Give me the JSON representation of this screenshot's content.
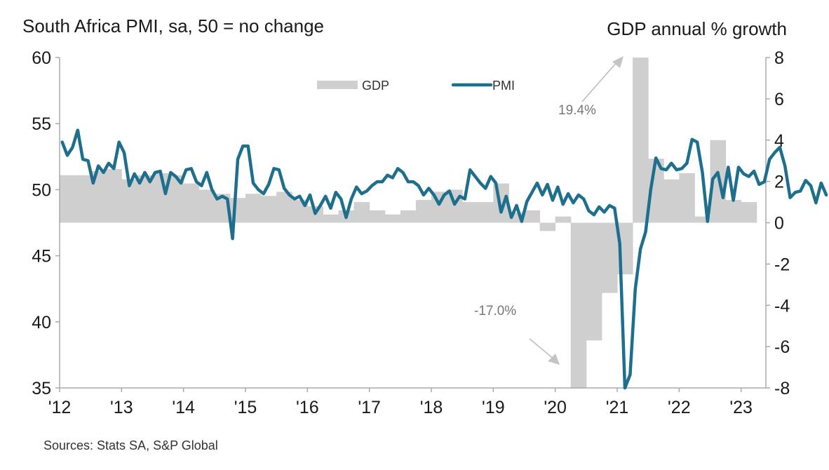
{
  "header": {
    "left_title": "South Africa PMI, sa, 50 = no change",
    "right_title": "GDP annual % growth"
  },
  "footer": {
    "source": "Sources: Stats SA, S&P Global"
  },
  "chart_data": {
    "type": "bar+line",
    "title_left": "South Africa PMI, sa, 50 = no change",
    "title_right": "GDP annual % growth",
    "colors": {
      "pmi": "#1e6f8e",
      "gdp": "#cfcfcf",
      "axis": "#aaaaaa",
      "annotation": "#999999"
    },
    "legend": {
      "position": "top-center",
      "entries": [
        "GDP",
        "PMI"
      ]
    },
    "left_axis": {
      "label": "PMI",
      "range": [
        35,
        60
      ],
      "ticks": [
        60,
        55,
        50,
        45,
        40,
        35
      ]
    },
    "right_axis": {
      "label": "GDP annual % growth",
      "range": [
        -8,
        8
      ],
      "ticks": [
        8,
        6,
        4,
        2,
        0,
        -2,
        -4,
        -6,
        -8
      ]
    },
    "x_axis": {
      "range": [
        2012.0,
        2023.4
      ],
      "ticks": [
        "'12",
        "'13",
        "'14",
        "'15",
        "'16",
        "'17",
        "'18",
        "'19",
        "'20",
        "'21",
        "'22",
        "'23"
      ]
    },
    "annotations": [
      {
        "text": "19.4%",
        "points_to": "2021 Q2 GDP (off-scale high)"
      },
      {
        "text": "-17.0%",
        "points_to": "2020 Q2 GDP (off-scale low)"
      }
    ],
    "series": [
      {
        "name": "GDP",
        "kind": "bar",
        "axis": "right",
        "frequency": "quarterly",
        "start": "2012-Q1",
        "values": [
          2.3,
          2.3,
          2.5,
          2.6,
          2.1,
          2.3,
          2.4,
          2.3,
          1.9,
          1.6,
          1.4,
          1.2,
          1.4,
          1.3,
          1.5,
          1.1,
          0.8,
          0.4,
          0.6,
          1.0,
          0.6,
          0.4,
          0.6,
          1.1,
          1.5,
          1.6,
          1.0,
          1.0,
          1.9,
          0.5,
          0.6,
          -0.4,
          0.3,
          -17.0,
          -5.7,
          -3.4,
          -2.5,
          19.4,
          3.1,
          2.1,
          2.4,
          0.3,
          4.0,
          1.1,
          1.0
        ]
      },
      {
        "name": "PMI",
        "kind": "line",
        "axis": "left",
        "frequency": "monthly",
        "start": "2012-01",
        "values": [
          53.6,
          52.6,
          53.2,
          54.5,
          52.3,
          52.2,
          50.5,
          51.8,
          51.3,
          52.0,
          51.6,
          53.6,
          52.8,
          50.3,
          51.2,
          50.5,
          51.3,
          50.6,
          51.3,
          51.4,
          49.7,
          51.3,
          51.0,
          50.5,
          51.5,
          51.6,
          50.6,
          50.3,
          51.3,
          50.0,
          49.3,
          49.5,
          49.3,
          46.3,
          52.3,
          53.3,
          53.3,
          50.5,
          50.0,
          49.7,
          50.4,
          51.6,
          51.5,
          50.1,
          49.6,
          49.3,
          49.5,
          48.8,
          49.6,
          48.2,
          48.8,
          49.5,
          48.6,
          49.8,
          49.3,
          47.9,
          49.3,
          50.2,
          49.7,
          49.9,
          50.3,
          50.6,
          50.6,
          51.1,
          50.9,
          51.6,
          51.3,
          50.6,
          50.6,
          50.3,
          49.6,
          50.1,
          49.6,
          48.9,
          49.6,
          49.9,
          48.9,
          49.5,
          49.3,
          51.5,
          51.0,
          50.5,
          50.1,
          51.0,
          50.5,
          48.3,
          49.5,
          47.9,
          48.8,
          47.6,
          49.1,
          49.8,
          50.5,
          49.6,
          50.4,
          49.2,
          50.2,
          48.9,
          49.7,
          49.0,
          49.6,
          49.3,
          48.4,
          48.1,
          48.7,
          48.3,
          48.8,
          48.6,
          45.9,
          34.0,
          36.0,
          42.5,
          45.5,
          46.8,
          50.0,
          52.4,
          51.6,
          51.5,
          52.0,
          51.5,
          51.6,
          52.0,
          53.8,
          53.6,
          51.3,
          47.6,
          50.8,
          51.3,
          49.4,
          51.7,
          49.2,
          51.7,
          51.2,
          51.0,
          51.4,
          50.4,
          50.6,
          52.3,
          52.8,
          53.2,
          51.8,
          49.4,
          49.8,
          49.9,
          50.7,
          50.3,
          49.0,
          50.5,
          49.6
        ]
      }
    ]
  }
}
